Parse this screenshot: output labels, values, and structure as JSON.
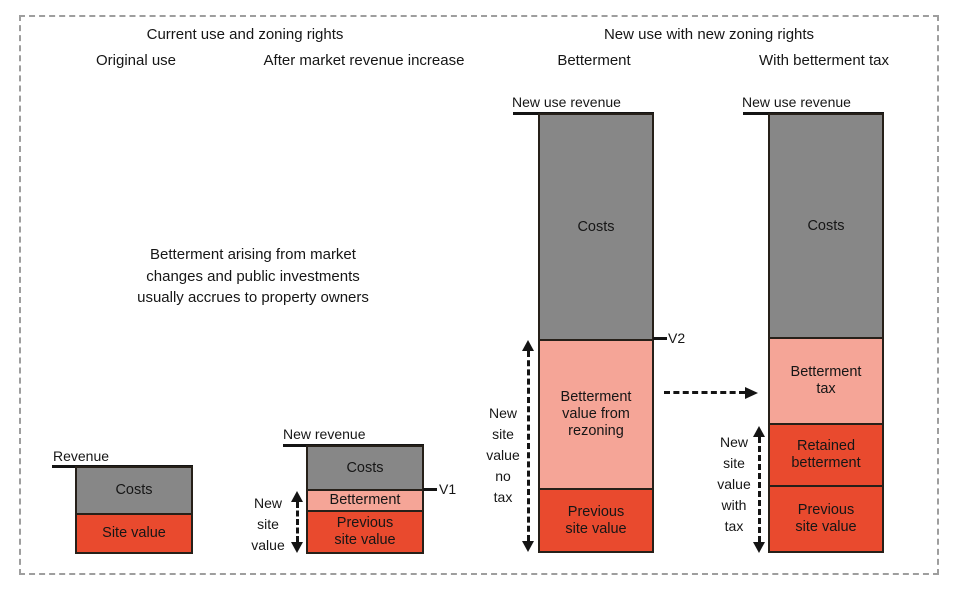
{
  "headers": {
    "current_use_group": "Current use and zoning rights",
    "new_use_group": "New use with new zoning rights",
    "original_use": "Original use",
    "after_market": "After market revenue increase",
    "betterment": "Betterment",
    "with_betterment_tax": "With betterment tax"
  },
  "note": "Betterment arising from market\nchanges and public investments\nusually accrues to property owners",
  "bars": {
    "original_use": {
      "revenue_label": "Revenue",
      "segments": [
        {
          "name": "costs",
          "label": "Costs"
        },
        {
          "name": "site-value",
          "label": "Site value"
        }
      ]
    },
    "after_market": {
      "revenue_label": "New revenue",
      "marker": "V1",
      "side_label": "New\nsite\nvalue",
      "segments": [
        {
          "name": "costs",
          "label": "Costs"
        },
        {
          "name": "betterment",
          "label": "Betterment"
        },
        {
          "name": "previous-site-value",
          "label": "Previous\nsite value"
        }
      ]
    },
    "betterment": {
      "revenue_label": "New use revenue",
      "marker": "V2",
      "side_label": "New\nsite\nvalue\nno\ntax",
      "segments": [
        {
          "name": "costs",
          "label": "Costs"
        },
        {
          "name": "betterment-value-from-rezoning",
          "label": "Betterment\nvalue from\nrezoning"
        },
        {
          "name": "previous-site-value",
          "label": "Previous\nsite value"
        }
      ]
    },
    "with_tax": {
      "revenue_label": "New use revenue",
      "side_label": "New\nsite\nvalue\nwith\ntax",
      "segments": [
        {
          "name": "costs",
          "label": "Costs"
        },
        {
          "name": "betterment-tax",
          "label": "Betterment\ntax"
        },
        {
          "name": "retained-betterment",
          "label": "Retained\nbetterment"
        },
        {
          "name": "previous-site-value",
          "label": "Previous\nsite value"
        }
      ]
    }
  },
  "colors": {
    "costs_gray": "#878787",
    "site_value_red": "#E94A2E",
    "betterment_pink": "#F5A597",
    "bar_border": "#262019",
    "frame_dash": "#9e9e9e",
    "line_black": "#141414"
  }
}
